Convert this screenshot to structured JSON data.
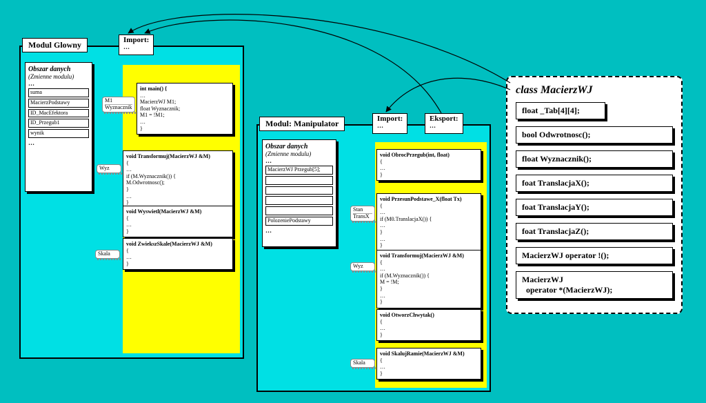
{
  "background_color": "#00bfc0",
  "module_bg": "#00e0e4",
  "yellow": "#ffff00",
  "main_module": {
    "title": "Modul Glowny",
    "import_label": "Import:",
    "data_panel": {
      "title": "Obszar danych",
      "subtitle": "(Zmienne modulu)",
      "vars": [
        "suma",
        "MacierzPodstawy",
        "ID_MacEfektora",
        "ID_Przegub1",
        "wynik"
      ]
    },
    "funcs": [
      {
        "locals": [
          "M1",
          "Wyznacznik"
        ],
        "sig": "int main() {",
        "body": [
          "…",
          "MacierzWJ  M1;",
          "float  Wyznacznik;",
          "M1 = !M1;",
          "…",
          "}"
        ]
      },
      {
        "locals": [
          "Wyz"
        ],
        "sig": "void Transformuj(MacierzWJ &M)",
        "body": [
          "{",
          "…",
          "if (M.Wyznacznik()) {",
          "  M.Odwrotnosc();",
          " }",
          "…",
          "}"
        ]
      },
      {
        "locals": [],
        "sig": "void Wyswietl(MacierzWJ &M)",
        "body": [
          "{",
          "…",
          "}"
        ]
      },
      {
        "locals": [
          "Skala"
        ],
        "sig": "void ZwiekszSkale(MacierzWJ &M)",
        "body": [
          "{",
          "…",
          "}"
        ]
      }
    ]
  },
  "manip_module": {
    "title": "Modul: Manipulator",
    "import_label": "Import:",
    "export_label": "Eksport:",
    "data_panel": {
      "title": "Obszar danych",
      "subtitle": "(Zmienne modulu)",
      "vars": [
        "MacierzWJ Przegub[5];",
        "",
        "",
        "",
        "",
        "PolozeniePodstawy"
      ]
    },
    "funcs": [
      {
        "locals": [],
        "sig": "void ObrocPrzegub(int, float)",
        "body": [
          "{",
          "…",
          "}"
        ]
      },
      {
        "locals": [
          "Stan",
          "TransX"
        ],
        "sig": "void PrzesunPodstawe_X(float Tx)",
        "body": [
          "{",
          "…",
          "if (M0.TranslacjaX()) {",
          "…",
          "}",
          "…",
          "}"
        ]
      },
      {
        "locals": [
          "Wyz"
        ],
        "sig": "void Transformuj(MacierzWJ &M)",
        "body": [
          "{",
          "…",
          "if (M.Wyznacznik()) {",
          "  M = !M;",
          " }",
          "…",
          "}"
        ]
      },
      {
        "locals": [],
        "sig": "void OtworzChwytak()",
        "body": [
          "{",
          "…",
          "}"
        ]
      },
      {
        "locals": [
          "Skala"
        ],
        "sig": "void SkalujRamie(MacierzWJ &M)",
        "body": [
          "{",
          "…",
          "}"
        ]
      }
    ]
  },
  "class_box": {
    "title": "class MacierzWJ",
    "attr": "float _Tab[4][4];",
    "methods": [
      "bool Odwrotnosc();",
      "float Wyznacznik();",
      "foat TranslacjaX();",
      "foat TranslacjaY();",
      "foat TranslacjaZ();",
      "MacierzWJ operator !();",
      "MacierzWJ\n  operator *(MacierzWJ);"
    ]
  }
}
